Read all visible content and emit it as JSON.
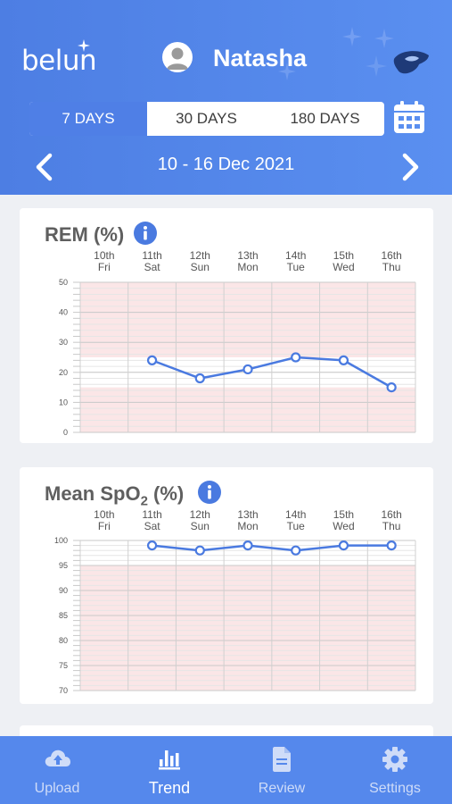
{
  "header": {
    "logo_text": "belun",
    "user_name": "Natasha",
    "range_tabs": [
      "7 DAYS",
      "30 DAYS",
      "180 DAYS"
    ],
    "active_range": "7 DAYS",
    "date_range": "10 - 16 Dec 2021"
  },
  "colors": {
    "header_blue": "#4d7ee3",
    "accent": "#4f7fe6",
    "line": "#4a7ae0",
    "out_of_range_band": "#fbe6e7"
  },
  "days": [
    {
      "date": "10th",
      "weekday": "Fri"
    },
    {
      "date": "11th",
      "weekday": "Sat"
    },
    {
      "date": "12th",
      "weekday": "Sun"
    },
    {
      "date": "13th",
      "weekday": "Mon"
    },
    {
      "date": "14th",
      "weekday": "Tue"
    },
    {
      "date": "15th",
      "weekday": "Wed"
    },
    {
      "date": "16th",
      "weekday": "Thu"
    }
  ],
  "chart_data": [
    {
      "type": "line",
      "title": "REM (%)",
      "x": [
        "10th Fri",
        "11th Sat",
        "12th Sun",
        "13th Mon",
        "14th Tue",
        "15th Wed",
        "16th Thu"
      ],
      "values": [
        null,
        24,
        18,
        21,
        25,
        24,
        15
      ],
      "ylim": [
        0,
        50
      ],
      "yticks": [
        0,
        10,
        20,
        30,
        40,
        50
      ],
      "normal_range": [
        15,
        25
      ],
      "grid": true,
      "legend": "none"
    },
    {
      "type": "line",
      "title_main": "Mean SpO",
      "title_sub": "2",
      "title_unit": " (%)",
      "x": [
        "10th Fri",
        "11th Sat",
        "12th Sun",
        "13th Mon",
        "14th Tue",
        "15th Wed",
        "16th Thu"
      ],
      "values": [
        null,
        99,
        98,
        99,
        98,
        99,
        99
      ],
      "ylim": [
        70,
        100
      ],
      "yticks": [
        70,
        75,
        80,
        85,
        90,
        95,
        100
      ],
      "normal_range": [
        95,
        100
      ],
      "grid": true,
      "legend": "none"
    }
  ],
  "tabbar": {
    "items": [
      {
        "label": "Upload",
        "icon": "cloud-upload-icon"
      },
      {
        "label": "Trend",
        "icon": "bar-chart-icon"
      },
      {
        "label": "Review",
        "icon": "document-icon"
      },
      {
        "label": "Settings",
        "icon": "gear-icon"
      }
    ],
    "active": "Trend"
  }
}
